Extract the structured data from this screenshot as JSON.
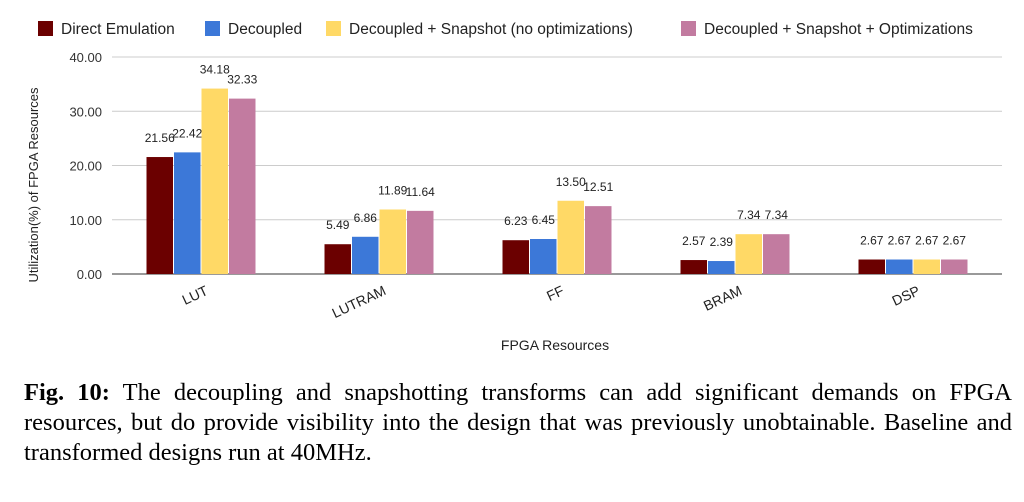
{
  "caption": {
    "label": "Fig. 10:",
    "text": " The decoupling and snapshotting transforms can add significant demands on FPGA resources, but do provide visibility into the design that was previously unobtainable. Baseline and transformed designs run at 40MHz."
  },
  "chart_data": {
    "type": "bar",
    "categories": [
      "LUT",
      "LUTRAM",
      "FF",
      "BRAM",
      "DSP"
    ],
    "series": [
      {
        "name": "Direct Emulation",
        "color": "#6b0000",
        "values": [
          21.56,
          5.49,
          6.23,
          2.57,
          2.67
        ],
        "labels": [
          "21.56",
          "5.49",
          "6.23",
          "2.57",
          "2.67"
        ]
      },
      {
        "name": "Decoupled",
        "color": "#3c78d8",
        "values": [
          22.42,
          6.86,
          6.45,
          2.39,
          2.67
        ],
        "labels": [
          "22.42",
          "6.86",
          "6.45",
          "2.39",
          "2.67"
        ]
      },
      {
        "name": "Decoupled + Snapshot (no optimizations)",
        "color": "#ffd966",
        "values": [
          34.18,
          11.89,
          13.5,
          7.34,
          2.67
        ],
        "labels": [
          "34.18",
          "11.89",
          "13.50",
          "7.34",
          "2.67"
        ]
      },
      {
        "name": "Decoupled + Snapshot + Optimizations",
        "color": "#c27ba0",
        "values": [
          32.33,
          11.64,
          12.51,
          7.34,
          2.67
        ],
        "labels": [
          "32.33",
          "11.64",
          "12.51",
          "7.34",
          "2.67"
        ]
      }
    ],
    "xlabel": "FPGA Resources",
    "ylabel": "Utilization(%) of FPGA Resources",
    "ylim": [
      0,
      40
    ],
    "yticks": [
      "0.00",
      "10.00",
      "20.00",
      "30.00",
      "40.00"
    ],
    "grid": true,
    "legend": "top"
  }
}
